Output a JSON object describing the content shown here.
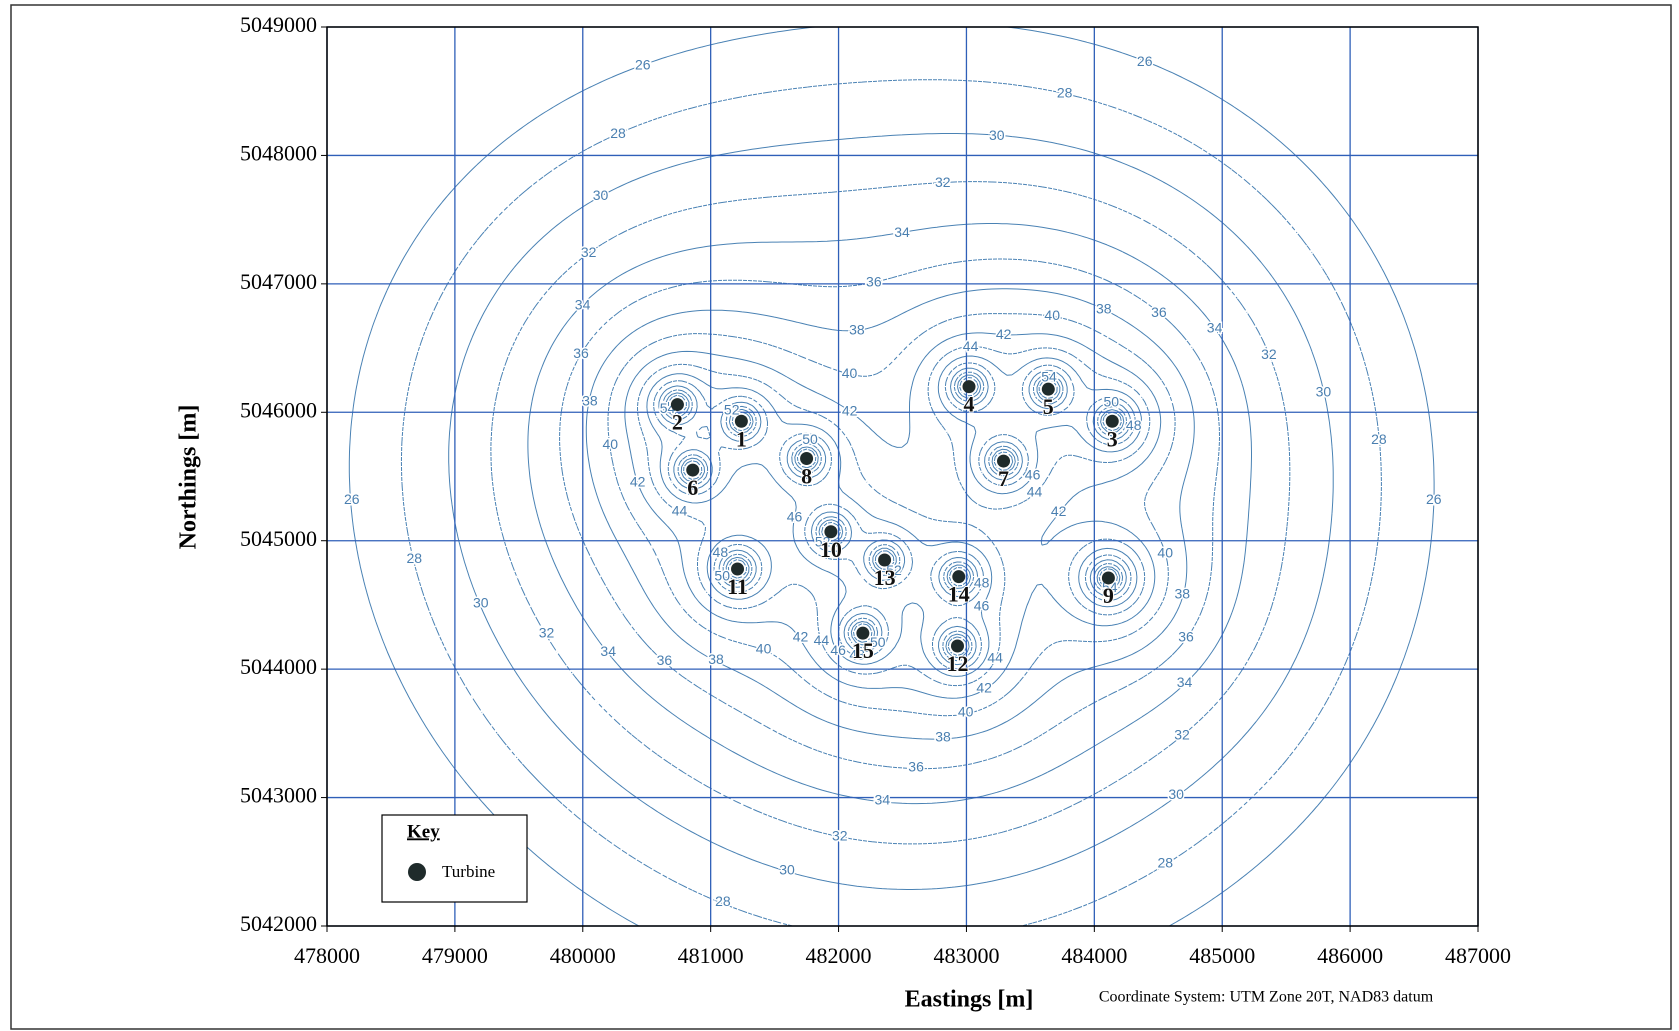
{
  "chart_data": {
    "type": "scatter",
    "x_label": "Eastings [m]",
    "y_label": "Northings [m]",
    "note": "Coordinate System: UTM Zone 20T, NAD83 datum",
    "legend_title": "Key",
    "legend_position": "lower left",
    "xlim": [
      478000,
      487000
    ],
    "ylim": [
      5042000,
      5049000
    ],
    "xticks": [
      478000,
      479000,
      480000,
      481000,
      482000,
      483000,
      484000,
      485000,
      486000,
      487000
    ],
    "yticks": [
      5042000,
      5043000,
      5044000,
      5045000,
      5046000,
      5047000,
      5048000,
      5049000
    ],
    "grid": true,
    "grid_color": "#2f5fb8",
    "contour_color": "#4a82b4",
    "contour_levels": [
      26,
      28,
      30,
      32,
      34,
      36,
      38,
      40,
      42,
      44,
      46,
      48,
      50,
      52,
      54,
      56
    ],
    "series": [
      {
        "name": "Turbine",
        "color": "#1f2b2b",
        "x": [
          481240,
          480740,
          484140,
          483020,
          483640,
          480860,
          483290,
          481750,
          484110,
          481940,
          481210,
          482930,
          482360,
          482940,
          482190
        ],
        "values": [
          5045930,
          5046060,
          5045930,
          5046200,
          5046180,
          5045550,
          5045620,
          5045640,
          5044710,
          5045070,
          5044780,
          5044180,
          5044850,
          5044720,
          5044280
        ],
        "point_labels": [
          "1",
          "2",
          "3",
          "4",
          "5",
          "6",
          "7",
          "8",
          "9",
          "10",
          "11",
          "12",
          "13",
          "14",
          "15"
        ]
      }
    ]
  }
}
